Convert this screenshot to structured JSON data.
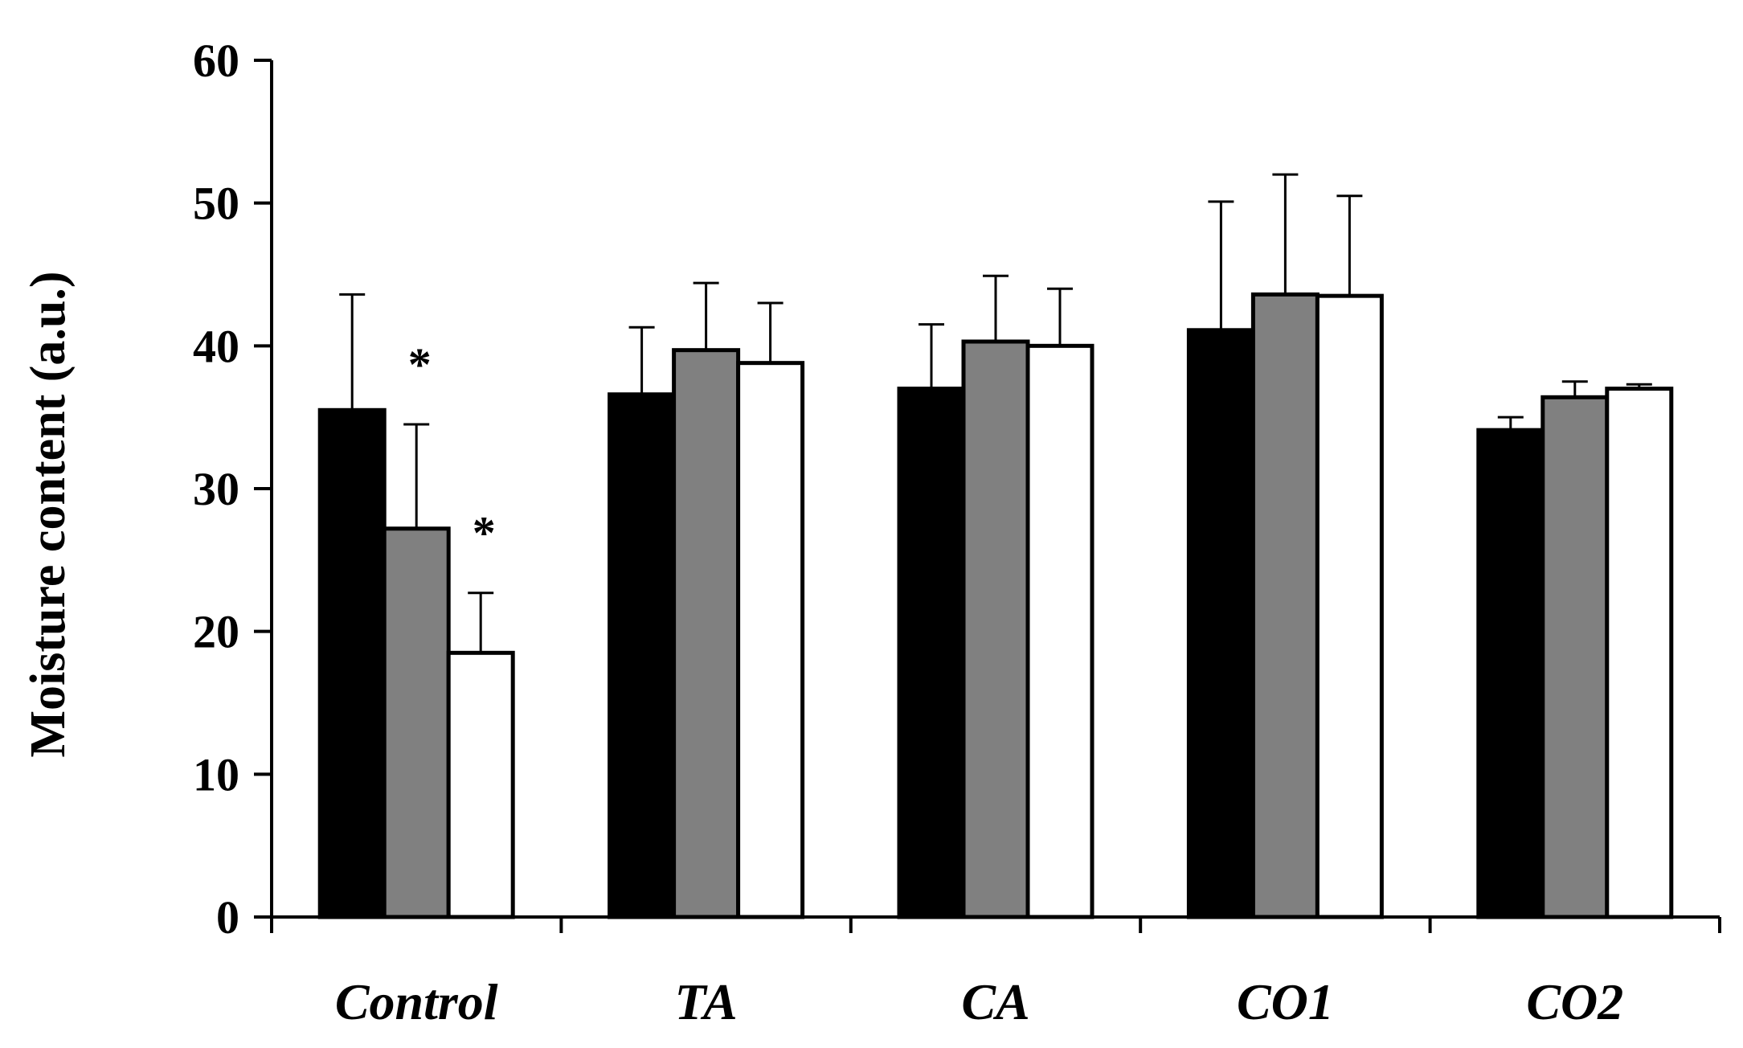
{
  "chart_data": {
    "type": "bar",
    "title": "",
    "xlabel": "",
    "ylabel": "Moisture content (a.u.)",
    "ylim": [
      0,
      60
    ],
    "yticks": [
      0,
      10,
      20,
      30,
      40,
      50,
      60
    ],
    "grid": false,
    "legend": "none",
    "categories": [
      "Control",
      "TA",
      "CA",
      "CO1",
      "CO2"
    ],
    "series": [
      {
        "fill": "#000000",
        "values": [
          35.5,
          36.6,
          37.0,
          41.1,
          34.1
        ],
        "errors": [
          8.1,
          4.7,
          4.5,
          9.0,
          0.9
        ]
      },
      {
        "fill": "#808080",
        "values": [
          27.2,
          39.7,
          40.3,
          43.6,
          36.4
        ],
        "errors": [
          7.3,
          4.7,
          4.6,
          8.4,
          1.1
        ]
      },
      {
        "fill": "#ffffff",
        "values": [
          18.5,
          38.8,
          40.0,
          43.5,
          37.0
        ],
        "errors": [
          4.2,
          4.2,
          4.0,
          7.0,
          0.3
        ]
      }
    ],
    "annotations": [
      {
        "category": 0,
        "series": 1,
        "text": "*"
      },
      {
        "category": 0,
        "series": 2,
        "text": "*"
      }
    ]
  }
}
